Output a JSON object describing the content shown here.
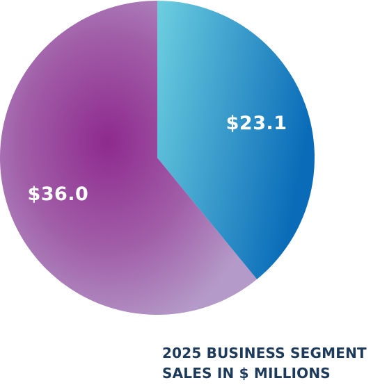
{
  "chart_data": {
    "type": "pie",
    "title_lines": [
      "2025 BUSINESS SEGMENT",
      "SALES IN $ MILLIONS"
    ],
    "slices": [
      {
        "label": "$23.1",
        "value": 23.1,
        "color_start": "#6ecfe0",
        "color_end": "#0a6cb8"
      },
      {
        "label": "$36.0",
        "value": 36.0,
        "color_center": "#8e2a8e",
        "color_edge": "#b49ac8"
      }
    ],
    "start_angle_deg": 0,
    "direction": "clockwise"
  }
}
